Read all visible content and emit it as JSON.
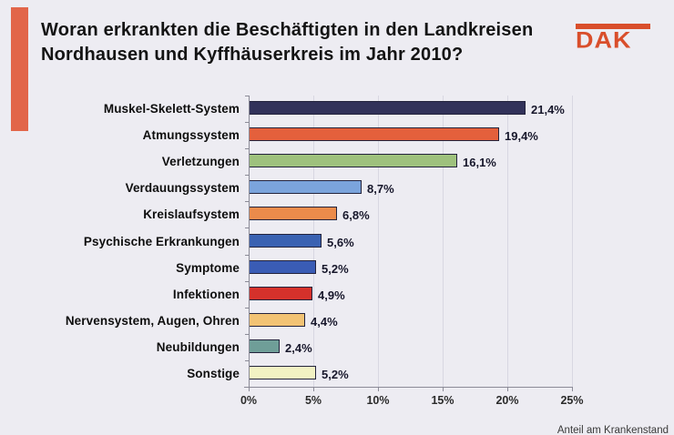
{
  "header": {
    "title_line1": "Woran erkrankten die Beschäftigten in den Landkreisen",
    "title_line2": "Nordhausen und Kyffhäuserkreis im Jahr 2010?",
    "logo_text": "DAK",
    "logo_color": "#d94e2b",
    "accent_bar_color": "#e2664a"
  },
  "footer_note": "Anteil am Krankenstand",
  "chart_data": {
    "type": "bar",
    "orientation": "horizontal",
    "title": "Woran erkrankten die Beschäftigten in den Landkreisen Nordhausen und Kyffhäuserkreis im Jahr 2010?",
    "categories": [
      "Muskel-Skelett-System",
      "Atmungssystem",
      "Verletzungen",
      "Verdauungssystem",
      "Kreislaufsystem",
      "Psychische Erkrankungen",
      "Symptome",
      "Infektionen",
      "Nervensystem, Augen, Ohren",
      "Neubildungen",
      "Sonstige"
    ],
    "values": [
      21.4,
      19.4,
      16.1,
      8.7,
      6.8,
      5.6,
      5.2,
      4.9,
      4.4,
      2.4,
      5.2
    ],
    "value_labels": [
      "21,4%",
      "19,4%",
      "16,1%",
      "8,7%",
      "6,8%",
      "5,6%",
      "5,2%",
      "4,9%",
      "4,4%",
      "2,4%",
      "5,2%"
    ],
    "bar_colors": [
      "#32325a",
      "#e4603c",
      "#9ec17d",
      "#7ba4dc",
      "#eb8b4b",
      "#3a62b2",
      "#3a5cb5",
      "#d5312b",
      "#f2c374",
      "#6f9e98",
      "#f2f2c3"
    ],
    "x_ticks": [
      "0%",
      "5%",
      "10%",
      "15%",
      "20%",
      "25%"
    ],
    "xlim": [
      0,
      25
    ],
    "xlabel": "Anteil am Krankenstand",
    "ylabel": "",
    "grid": true,
    "legend": false
  }
}
